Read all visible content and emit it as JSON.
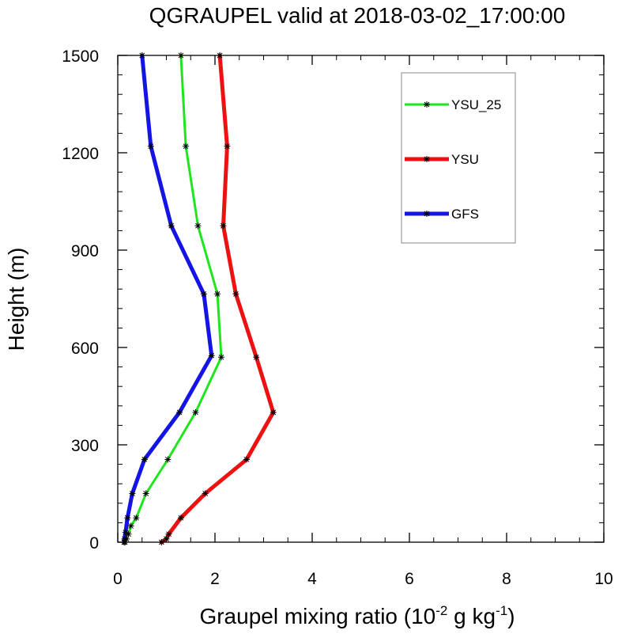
{
  "chart_data": {
    "type": "line",
    "title": "QGRAUPEL valid at 2018-03-02_17:00:00",
    "xlabel_prefix": "Graupel mixing ratio (10",
    "xlabel_exp1": "-2",
    "xlabel_mid": " g kg",
    "xlabel_exp2": "-1",
    "xlabel_suffix": ")",
    "ylabel": "Height (m)",
    "xlim": [
      0,
      10
    ],
    "ylim": [
      0,
      1500
    ],
    "xticks": [
      0,
      2,
      4,
      6,
      8,
      10
    ],
    "yticks": [
      0,
      300,
      600,
      900,
      1200,
      1500
    ],
    "x_minor_step": 0.5,
    "y_minor_step": 60,
    "grid": false,
    "legend_position": "top-right",
    "series": [
      {
        "name": "YSU_25",
        "color": "#1ee61e",
        "width": 3,
        "x": [
          0.15,
          0.18,
          0.22,
          0.27,
          0.38,
          0.58,
          1.03,
          1.6,
          2.13,
          2.05,
          1.65,
          1.4,
          1.3
        ],
        "y": [
          0,
          10,
          25,
          50,
          75,
          150,
          255,
          400,
          570,
          765,
          975,
          1220,
          1500
        ]
      },
      {
        "name": "YSU",
        "color": "#ee1111",
        "width": 5,
        "x": [
          0.9,
          1.0,
          1.05,
          1.3,
          1.8,
          2.65,
          3.2,
          2.85,
          2.43,
          2.17,
          2.25,
          2.1
        ],
        "y": [
          0,
          10,
          25,
          75,
          150,
          255,
          400,
          570,
          765,
          975,
          1220,
          1500
        ]
      },
      {
        "name": "GFS",
        "color": "#1414e6",
        "width": 5,
        "x": [
          0.13,
          0.14,
          0.16,
          0.2,
          0.3,
          0.55,
          1.27,
          1.93,
          1.77,
          1.1,
          0.68,
          0.5
        ],
        "y": [
          0,
          10,
          30,
          75,
          150,
          255,
          400,
          575,
          765,
          975,
          1220,
          1500
        ]
      }
    ]
  }
}
